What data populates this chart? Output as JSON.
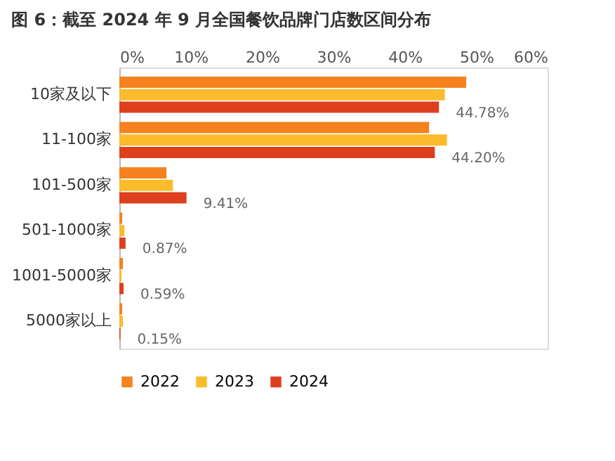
{
  "chart_data": {
    "type": "bar",
    "orientation": "horizontal",
    "title": "图 6：截至 2024 年 9 月全国餐饮品牌门店数区间分布",
    "categories": [
      "10家及以下",
      "11-100家",
      "101-500家",
      "501-1000家",
      "1001-5000家",
      "5000家以上"
    ],
    "series": [
      {
        "name": "2022",
        "color": "#f5821f",
        "values": [
          48.6,
          43.4,
          6.6,
          0.4,
          0.5,
          0.4
        ]
      },
      {
        "name": "2023",
        "color": "#fbbb2b",
        "values": [
          45.6,
          45.9,
          7.5,
          0.7,
          0.3,
          0.5
        ]
      },
      {
        "name": "2024",
        "color": "#de3f1c",
        "values": [
          44.78,
          44.2,
          9.41,
          0.87,
          0.59,
          0.15
        ],
        "value_labels": [
          "44.78%",
          "44.20%",
          "9.41%",
          "0.87%",
          "0.59%",
          "0.15%"
        ]
      }
    ],
    "xlim": [
      0,
      60
    ],
    "xticks": [
      {
        "value": 0,
        "label": "0%"
      },
      {
        "value": 10,
        "label": "10%"
      },
      {
        "value": 20,
        "label": "20%"
      },
      {
        "value": 30,
        "label": "30%"
      },
      {
        "value": 40,
        "label": "40%"
      },
      {
        "value": 50,
        "label": "50%"
      },
      {
        "value": 60,
        "label": "60%"
      }
    ],
    "grid": false,
    "legend": "bottom"
  }
}
